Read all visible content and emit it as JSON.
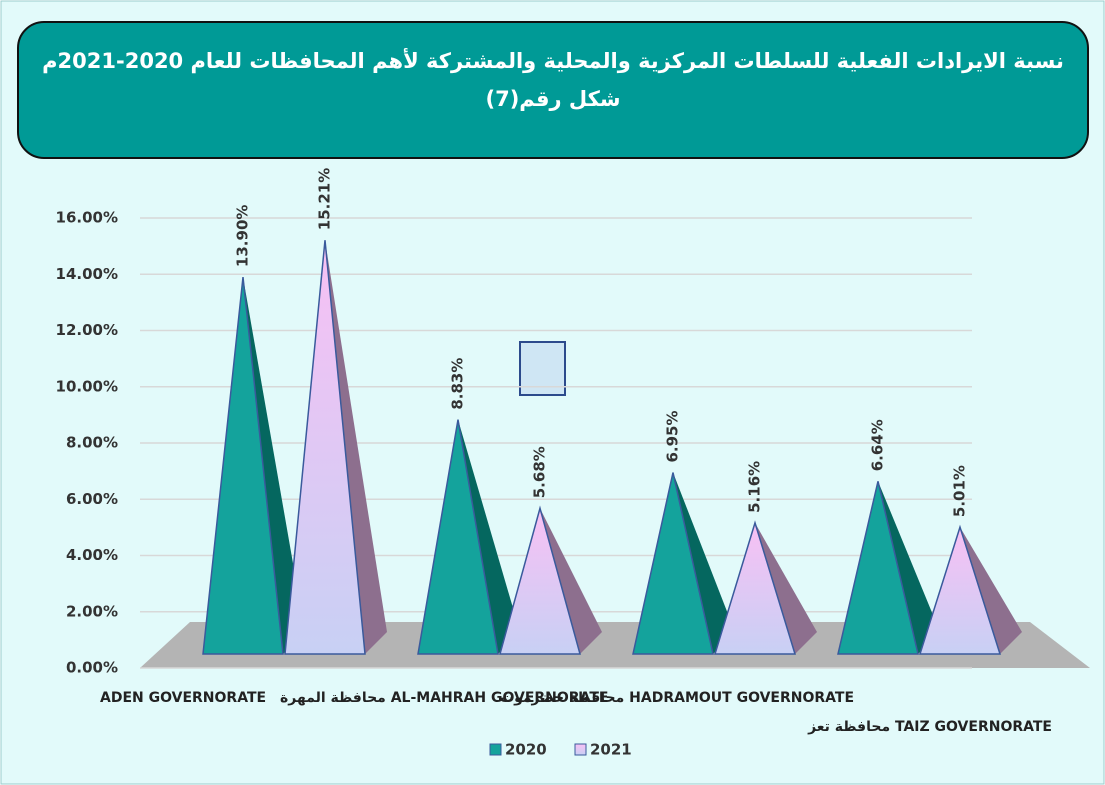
{
  "chart_data": {
    "type": "pyramid",
    "title": "نسبة الايرادات الفعلية للسلطات المركزية والمحلية والمشتركة لأهم المحافظات للعام 2020-2021م",
    "subtitle": "شكل رقم(7)",
    "categories": [
      "ADEN GOVERNORATE",
      "محافظة المهرة AL-MAHRAH GOVERNORATE",
      "محافظة حضرموت HADRAMOUT GOVERNORATE",
      "محافظة تعز TAIZ GOVERNORATE"
    ],
    "series": [
      {
        "name": "2020",
        "color": "#14a39c",
        "values": [
          13.9,
          8.83,
          6.95,
          6.64
        ],
        "value_labels": [
          "13.90%",
          "8.83%",
          "6.95%",
          "6.64%"
        ]
      },
      {
        "name": "2021",
        "color": "#f6c4f2",
        "values": [
          15.21,
          5.68,
          5.16,
          5.01
        ],
        "value_labels": [
          "15.21%",
          "5.68%",
          "5.16%",
          "5.01%"
        ]
      }
    ],
    "ylim": [
      0,
      16
    ],
    "yticks": [
      {
        "value": 0,
        "label": "0.00%"
      },
      {
        "value": 2,
        "label": "2.00%"
      },
      {
        "value": 4,
        "label": "4.00%"
      },
      {
        "value": 6,
        "label": "6.00%"
      },
      {
        "value": 8,
        "label": "8.00%"
      },
      {
        "value": 10,
        "label": "10.00%"
      },
      {
        "value": 12,
        "label": "12.00%"
      },
      {
        "value": 14,
        "label": "14.00%"
      },
      {
        "value": 16,
        "label": "16.00%"
      }
    ],
    "grid": true,
    "legend": "bottom"
  }
}
